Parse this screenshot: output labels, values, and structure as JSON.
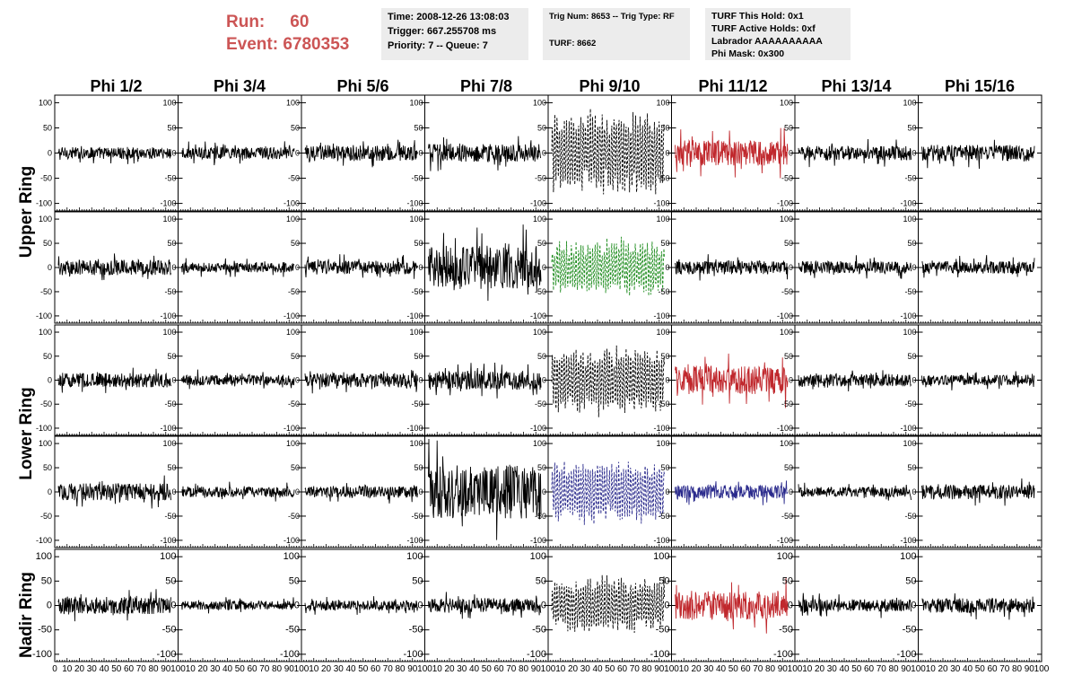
{
  "header": {
    "run_label": "Run:",
    "run_value": "60",
    "event_label": "Event:",
    "event_value": "6780353"
  },
  "info_boxes": {
    "time": [
      "Time: 2008-12-26 13:08:03",
      "Trigger: 667.255708 ms",
      "Priority: 7 -- Queue: 7"
    ],
    "trig": [
      "Trig Num: 8653 -- Trig Type: RF",
      "",
      "TURF: 8662"
    ],
    "turf": [
      "TURF This Hold: 0x1",
      "TURF Active Holds: 0xf",
      "Labrador AAAAAAAAAA",
      "Phi Mask: 0x300"
    ]
  },
  "columns": [
    "Phi 1/2",
    "Phi 3/4",
    "Phi 5/6",
    "Phi 7/8",
    "Phi 9/10",
    "Phi 11/12",
    "Phi 13/14",
    "Phi 15/16"
  ],
  "ring_labels": [
    "Upper Ring",
    "Lower Ring",
    "Nadir Ring"
  ],
  "colors": {
    "black": "#000000",
    "red": "#c0282d",
    "green": "#1e8c1e",
    "blue": "#2a2a8c",
    "header_red": "#cc5555",
    "box_gray": "#ececec"
  },
  "chart_data": {
    "type": "line",
    "description_rows": 5,
    "description_cols": 8,
    "xlim": [
      0,
      100
    ],
    "ylim": [
      -115,
      115
    ],
    "y_ticks": [
      100,
      50,
      0,
      -50,
      -100
    ],
    "y_tick_labels": [
      "100",
      "50",
      "0",
      "-50",
      "-100"
    ],
    "x_tick_labels": [
      "0",
      "10",
      "20",
      "30",
      "40",
      "50",
      "60",
      "70",
      "80",
      "90",
      "100"
    ],
    "panels": [
      [
        {
          "amp": 12,
          "color": "black",
          "dashed": false
        },
        {
          "amp": 12,
          "color": "black",
          "dashed": false
        },
        {
          "amp": 16,
          "color": "black",
          "dashed": false
        },
        {
          "amp": 18,
          "color": "black",
          "dashed": false
        },
        {
          "amp": 65,
          "color": "black",
          "dashed": true
        },
        {
          "amp": 25,
          "color": "red",
          "dashed": false
        },
        {
          "amp": 14,
          "color": "black",
          "dashed": false
        },
        {
          "amp": 16,
          "color": "black",
          "dashed": false
        }
      ],
      [
        {
          "amp": 16,
          "color": "black",
          "dashed": false
        },
        {
          "amp": 10,
          "color": "black",
          "dashed": false
        },
        {
          "amp": 14,
          "color": "black",
          "dashed": false
        },
        {
          "amp": 45,
          "color": "black",
          "dashed": false
        },
        {
          "amp": 45,
          "color": "green",
          "dashed": true
        },
        {
          "amp": 14,
          "color": "black",
          "dashed": false
        },
        {
          "amp": 13,
          "color": "black",
          "dashed": false
        },
        {
          "amp": 13,
          "color": "black",
          "dashed": false
        }
      ],
      [
        {
          "amp": 15,
          "color": "black",
          "dashed": false
        },
        {
          "amp": 11,
          "color": "black",
          "dashed": false
        },
        {
          "amp": 15,
          "color": "black",
          "dashed": false
        },
        {
          "amp": 20,
          "color": "black",
          "dashed": false
        },
        {
          "amp": 55,
          "color": "black",
          "dashed": true
        },
        {
          "amp": 30,
          "color": "red",
          "dashed": false
        },
        {
          "amp": 13,
          "color": "black",
          "dashed": false
        },
        {
          "amp": 11,
          "color": "black",
          "dashed": false
        }
      ],
      [
        {
          "amp": 18,
          "color": "black",
          "dashed": false
        },
        {
          "amp": 11,
          "color": "black",
          "dashed": false
        },
        {
          "amp": 12,
          "color": "black",
          "dashed": false
        },
        {
          "amp": 55,
          "color": "black",
          "dashed": false
        },
        {
          "amp": 50,
          "color": "blue",
          "dashed": true
        },
        {
          "amp": 14,
          "color": "blue",
          "dashed": false
        },
        {
          "amp": 10,
          "color": "black",
          "dashed": false
        },
        {
          "amp": 15,
          "color": "black",
          "dashed": false
        }
      ],
      [
        {
          "amp": 18,
          "color": "black",
          "dashed": false
        },
        {
          "amp": 9,
          "color": "black",
          "dashed": false
        },
        {
          "amp": 10,
          "color": "black",
          "dashed": false
        },
        {
          "amp": 15,
          "color": "black",
          "dashed": false
        },
        {
          "amp": 45,
          "color": "black",
          "dashed": true
        },
        {
          "amp": 30,
          "color": "red",
          "dashed": false
        },
        {
          "amp": 13,
          "color": "black",
          "dashed": false
        },
        {
          "amp": 15,
          "color": "black",
          "dashed": false
        }
      ]
    ]
  }
}
